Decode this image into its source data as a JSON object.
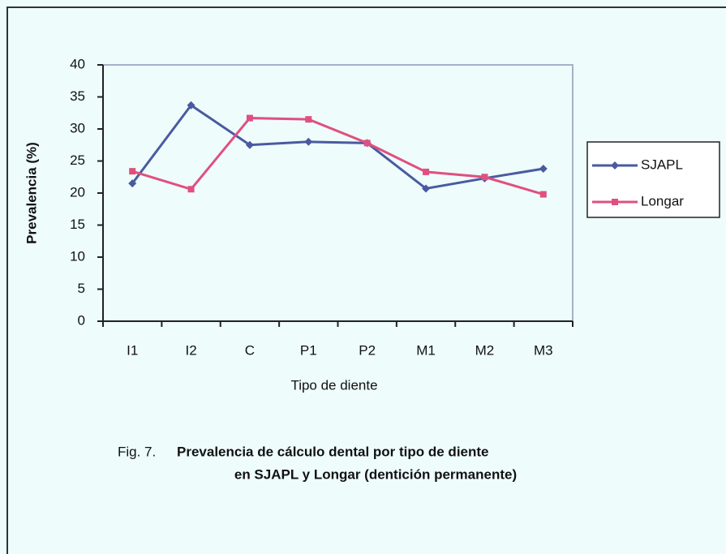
{
  "chart_data": {
    "type": "line",
    "x_label": "Tipo de diente",
    "y_label": "Prevalencia (%)",
    "categories": [
      "I1",
      "I2",
      "C",
      "P1",
      "P2",
      "M1",
      "M2",
      "M3"
    ],
    "series": [
      {
        "name": "SJAPL",
        "color": "#4a5aa0",
        "marker": "diamond",
        "values": [
          21.5,
          33.7,
          27.5,
          28,
          27.8,
          20.7,
          22.3,
          23.8
        ]
      },
      {
        "name": "Longar",
        "color": "#e0507e",
        "marker": "square",
        "values": [
          23.4,
          20.6,
          31.7,
          31.5,
          27.8,
          23.3,
          22.5,
          19.8
        ]
      }
    ],
    "ylim": [
      0,
      40
    ],
    "yticks": [
      0,
      5,
      10,
      15,
      20,
      25,
      30,
      35,
      40
    ],
    "grid": false,
    "legend": "right",
    "caption": {
      "label": "Fig. 7.",
      "lines": [
        "Prevalencia de cálculo dental por tipo de diente",
        "en SJAPL y Longar (dentición permanente)"
      ]
    }
  }
}
